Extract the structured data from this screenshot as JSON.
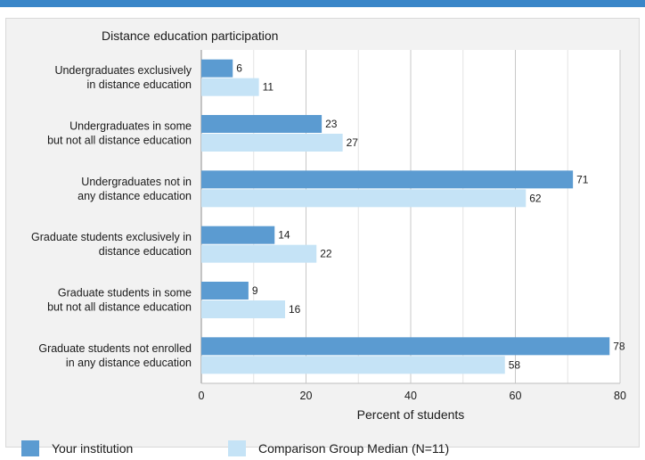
{
  "chart_data": {
    "type": "bar",
    "orientation": "horizontal",
    "title": "Distance education participation",
    "xlabel": "Percent of students",
    "ylabel": "",
    "xlim": [
      0,
      80
    ],
    "xticks": [
      0,
      20,
      40,
      60,
      80
    ],
    "grid": true,
    "legend_position": "bottom",
    "categories": [
      [
        "Undergraduates exclusively",
        "in distance education"
      ],
      [
        "Undergraduates in some",
        "but not all distance education"
      ],
      [
        "Undergraduates not in",
        "any distance education"
      ],
      [
        "Graduate students exclusively in",
        "distance education"
      ],
      [
        "Graduate students in some",
        "but not all distance education"
      ],
      [
        "Graduate students not enrolled",
        "in any distance education"
      ]
    ],
    "series": [
      {
        "name": "Your institution",
        "color": "#5b9bd1",
        "values": [
          6,
          23,
          71,
          14,
          9,
          78
        ]
      },
      {
        "name": "Comparison Group Median (N=11)",
        "color": "#c5e3f6",
        "values": [
          11,
          27,
          62,
          22,
          16,
          58
        ]
      }
    ]
  },
  "colors": {
    "accent_rule": "#3a86c8",
    "panel_bg": "#f2f2f2",
    "plot_bg": "#ffffff",
    "grid": "#c8c8c8"
  }
}
